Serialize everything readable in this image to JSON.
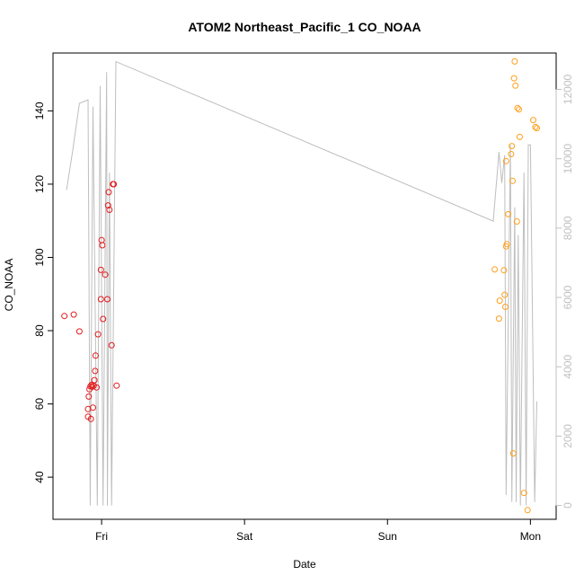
{
  "chart_data": {
    "type": "scatter",
    "title": "ATOM2 Northeast_Pacific_1 CO_NOAA",
    "xlabel": "Date",
    "ylabel": "CO_NOAA",
    "x_ticks": [
      "Fri",
      "Sat",
      "Sun",
      "Mon"
    ],
    "x_tick_days": [
      1,
      2,
      3,
      4
    ],
    "xlim": [
      0.66,
      4.18
    ],
    "y_ticks": [
      40,
      60,
      80,
      100,
      120,
      140
    ],
    "ylim": [
      28.5,
      155.8
    ],
    "y2_ticks": [
      0,
      2000,
      4000,
      6000,
      8000,
      10000,
      12000
    ],
    "y2lim": [
      -400,
      13050
    ],
    "grid": false,
    "legend": "none",
    "colors": {
      "first_series": "#e31a1c",
      "second_series": "#ff9f1c",
      "altitude_line": "#bebebe",
      "axis": "#000000",
      "right_axis": "#c0c0c0"
    },
    "series": [
      {
        "color": "#e31a1c",
        "points": [
          [
            0.74,
            84.0
          ],
          [
            0.805,
            84.4
          ],
          [
            0.845,
            79.8
          ],
          [
            0.905,
            58.6
          ],
          [
            0.905,
            56.5
          ],
          [
            0.91,
            62.0
          ],
          [
            0.915,
            64.0
          ],
          [
            0.922,
            64.8
          ],
          [
            0.925,
            55.9
          ],
          [
            0.93,
            65.2
          ],
          [
            0.935,
            64.7
          ],
          [
            0.94,
            59.0
          ],
          [
            0.945,
            65.0
          ],
          [
            0.95,
            66.5
          ],
          [
            0.955,
            69.0
          ],
          [
            0.958,
            73.2
          ],
          [
            0.965,
            64.5
          ],
          [
            0.975,
            79.0
          ],
          [
            0.995,
            88.6
          ],
          [
            0.995,
            96.6
          ],
          [
            1.0,
            104.7
          ],
          [
            1.005,
            103.3
          ],
          [
            1.01,
            83.2
          ],
          [
            1.025,
            95.3
          ],
          [
            1.04,
            88.6
          ],
          [
            1.045,
            114.2
          ],
          [
            1.05,
            117.8
          ],
          [
            1.055,
            113.0
          ],
          [
            1.07,
            76.0
          ],
          [
            1.08,
            120.0
          ],
          [
            1.085,
            120.0
          ],
          [
            1.105,
            65.0
          ]
        ]
      },
      {
        "color": "#ff9f1c",
        "points": [
          [
            3.75,
            96.7
          ],
          [
            3.78,
            83.3
          ],
          [
            3.785,
            88.2
          ],
          [
            3.815,
            96.5
          ],
          [
            3.82,
            89.8
          ],
          [
            3.825,
            86.5
          ],
          [
            3.83,
            103.0
          ],
          [
            3.83,
            126.3
          ],
          [
            3.835,
            103.6
          ],
          [
            3.845,
            111.8
          ],
          [
            3.865,
            128.2
          ],
          [
            3.87,
            130.4
          ],
          [
            3.875,
            120.9
          ],
          [
            3.88,
            46.5
          ],
          [
            3.885,
            148.9
          ],
          [
            3.89,
            153.5
          ],
          [
            3.895,
            146.9
          ],
          [
            3.905,
            109.8
          ],
          [
            3.91,
            140.8
          ],
          [
            3.92,
            140.4
          ],
          [
            3.925,
            132.9
          ],
          [
            3.955,
            35.7
          ],
          [
            3.98,
            31.0
          ],
          [
            4.02,
            137.5
          ],
          [
            4.035,
            135.6
          ],
          [
            4.045,
            135.3
          ]
        ]
      }
    ],
    "altitude_line": [
      [
        0.755,
        9100
      ],
      [
        0.8,
        10300
      ],
      [
        0.81,
        10600
      ],
      [
        0.845,
        11600
      ],
      [
        0.905,
        11700
      ],
      [
        0.92,
        0
      ],
      [
        0.94,
        11500
      ],
      [
        0.97,
        0
      ],
      [
        0.99,
        12100
      ],
      [
        1.01,
        0
      ],
      [
        1.035,
        12500
      ],
      [
        1.04,
        0
      ],
      [
        1.055,
        9600
      ],
      [
        1.07,
        0
      ],
      [
        1.1,
        12800
      ],
      [
        3.74,
        8200
      ],
      [
        3.78,
        10200
      ],
      [
        3.8,
        9300
      ],
      [
        3.82,
        10100
      ],
      [
        3.83,
        300
      ],
      [
        3.86,
        10400
      ],
      [
        3.87,
        100
      ],
      [
        3.89,
        8600
      ],
      [
        3.9,
        100
      ],
      [
        3.915,
        7800
      ],
      [
        3.93,
        0
      ],
      [
        3.955,
        9600
      ],
      [
        3.97,
        0
      ],
      [
        3.985,
        10400
      ],
      [
        4.0,
        10400
      ],
      [
        4.03,
        100
      ],
      [
        4.045,
        3000
      ]
    ]
  }
}
